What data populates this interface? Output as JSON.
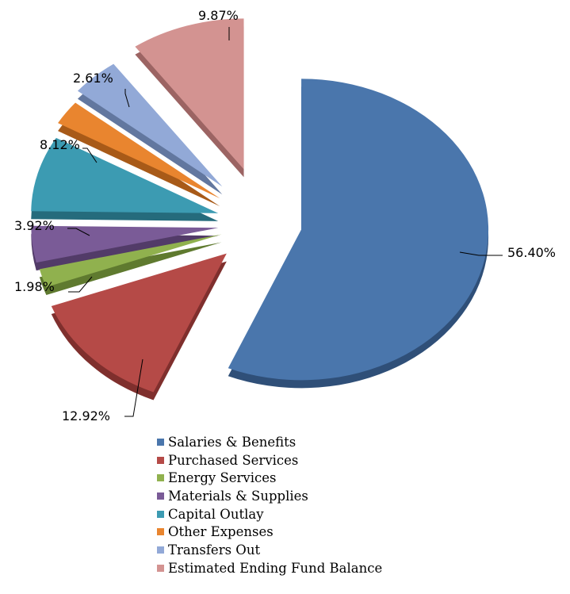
{
  "chart_data": {
    "type": "pie",
    "exploded": true,
    "start_angle_deg": 0,
    "direction": "clockwise",
    "legend_position": "bottom",
    "categories": [
      "Salaries & Benefits",
      "Purchased Services",
      "Energy Services",
      "Materials & Supplies",
      "Capital Outlay",
      "Other Expenses",
      "Transfers Out",
      "Estimated Ending Fund Balance"
    ],
    "values": [
      56.4,
      12.92,
      1.98,
      3.92,
      8.12,
      2.61,
      4.19,
      9.87
    ],
    "data_labels": [
      "56.40%",
      "12.92%",
      "1.98%",
      "3.92%",
      "8.12%",
      "2.61%",
      "",
      "9.87%"
    ],
    "colors": [
      "#4a76ac",
      "#b54a47",
      "#90b14e",
      "#7a5b97",
      "#3c9bb2",
      "#e9852f",
      "#92a9d7",
      "#d39391"
    ],
    "side_colors": [
      "#2f4f78",
      "#7f2f2d",
      "#5f7a2f",
      "#523b68",
      "#256b7c",
      "#a85a18",
      "#62779f",
      "#9c6463"
    ]
  }
}
